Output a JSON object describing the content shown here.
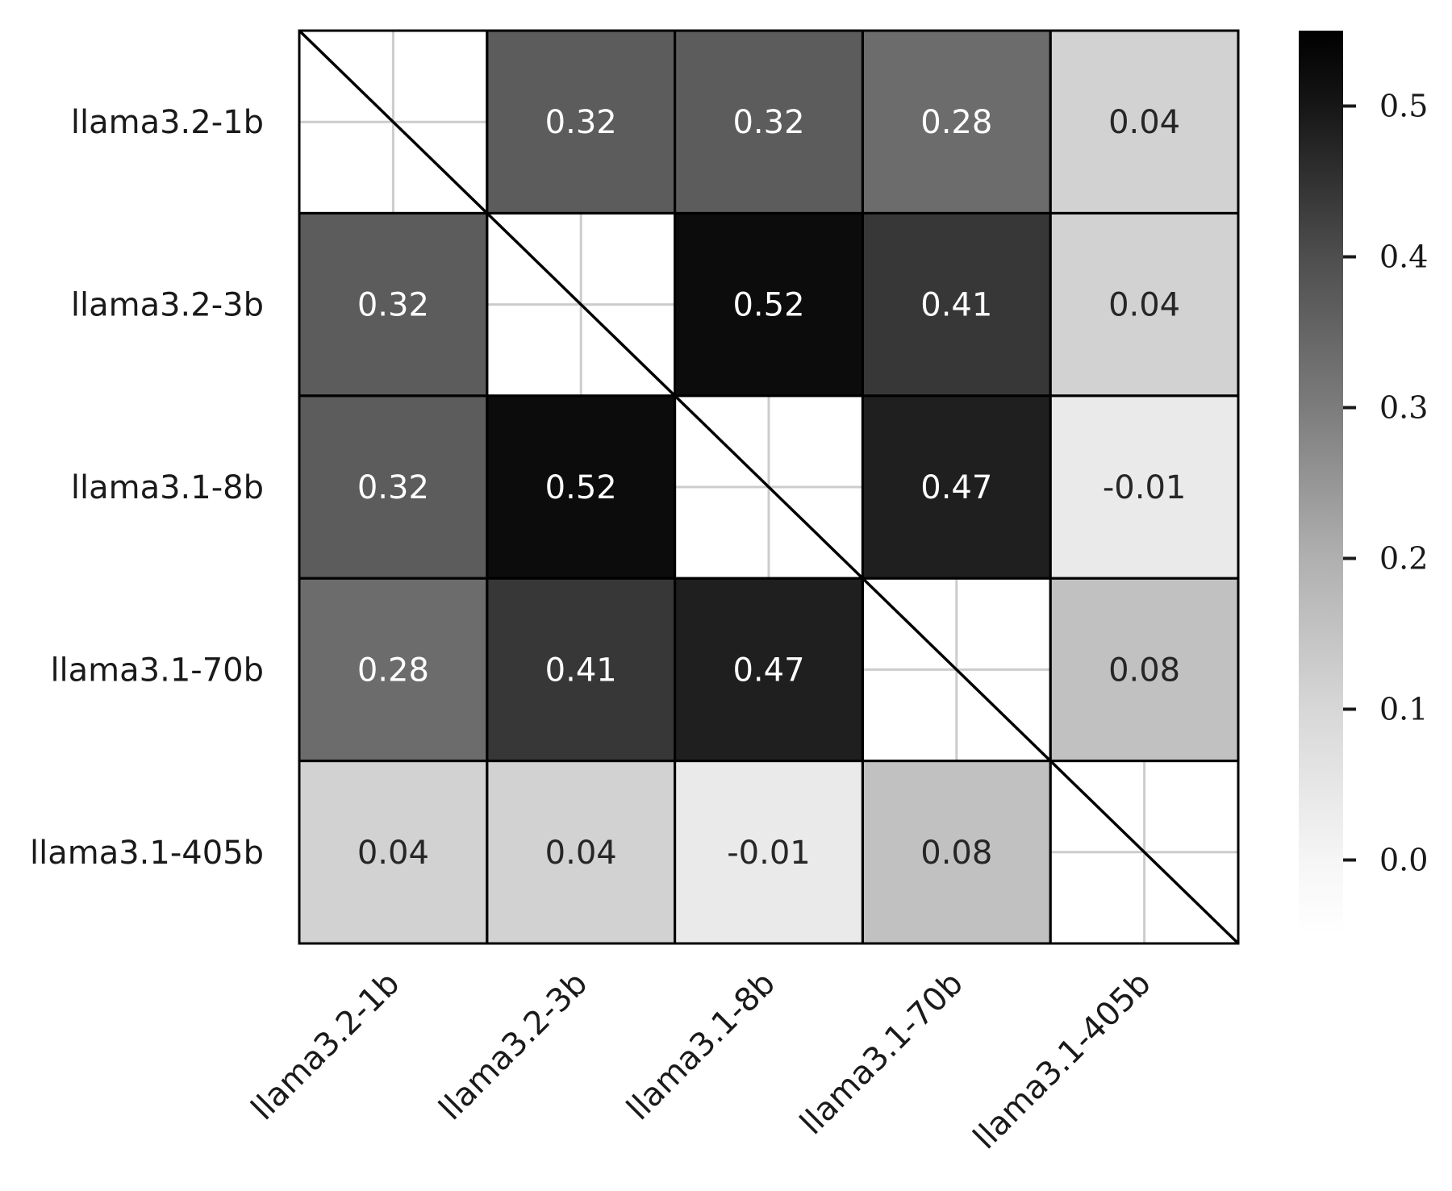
{
  "chart_data": {
    "type": "heatmap",
    "title": "",
    "xlabel": "",
    "ylabel": "",
    "rows": [
      "llama3.2-1b",
      "llama3.2-3b",
      "llama3.1-8b",
      "llama3.1-70b",
      "llama3.1-405b"
    ],
    "cols": [
      "llama3.2-1b",
      "llama3.2-3b",
      "llama3.1-8b",
      "llama3.1-70b",
      "llama3.1-405b"
    ],
    "values": [
      [
        null,
        0.32,
        0.32,
        0.28,
        0.04
      ],
      [
        0.32,
        null,
        0.52,
        0.41,
        0.04
      ],
      [
        0.32,
        0.52,
        null,
        0.47,
        -0.01
      ],
      [
        0.28,
        0.41,
        0.47,
        null,
        0.08
      ],
      [
        0.04,
        0.04,
        -0.01,
        0.08,
        null
      ]
    ],
    "labels": [
      [
        "",
        "0.32",
        "0.32",
        "0.28",
        "0.04"
      ],
      [
        "0.32",
        "",
        "0.52",
        "0.41",
        "0.04"
      ],
      [
        "0.32",
        "0.52",
        "",
        "0.47",
        "-0.01"
      ],
      [
        "0.28",
        "0.41",
        "0.47",
        "",
        "0.08"
      ],
      [
        "0.04",
        "0.04",
        "-0.01",
        "0.08",
        ""
      ]
    ],
    "diagonal": "blank with diagonal line",
    "colormap": "Greys",
    "vmin": -0.05,
    "vmax": 0.55,
    "colorbar_ticks": [
      0.0,
      0.1,
      0.2,
      0.3,
      0.4,
      0.5
    ],
    "colorbar_tick_labels": [
      "0.0",
      "0.1",
      "0.2",
      "0.3",
      "0.4",
      "0.5"
    ],
    "colors": {
      "low": "#ffffff",
      "high": "#000000",
      "grid": "#cccccc",
      "border": "#000000",
      "text_dark": "#262626",
      "text_light": "#ffffff"
    }
  }
}
